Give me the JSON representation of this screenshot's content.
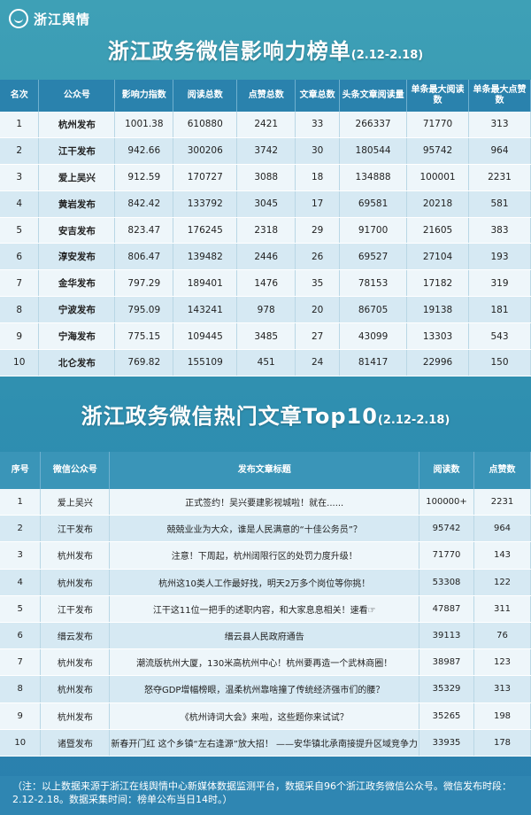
{
  "brand": {
    "name": "浙江舆情"
  },
  "ranking": {
    "title": "浙江政务微信影响力榜单",
    "period": "(2.12-2.18)",
    "headers": [
      "名次",
      "公众号",
      "影响力指数",
      "阅读总数",
      "点赞总数",
      "文章总数",
      "头条文章阅读量",
      "单条最大阅读数",
      "单条最大点赞数"
    ],
    "rows": [
      [
        "1",
        "杭州发布",
        "1001.38",
        "610880",
        "2421",
        "33",
        "266337",
        "71770",
        "313"
      ],
      [
        "2",
        "江干发布",
        "942.66",
        "300206",
        "3742",
        "30",
        "180544",
        "95742",
        "964"
      ],
      [
        "3",
        "爱上吴兴",
        "912.59",
        "170727",
        "3088",
        "18",
        "134888",
        "100001",
        "2231"
      ],
      [
        "4",
        "黄岩发布",
        "842.42",
        "133792",
        "3045",
        "17",
        "69581",
        "20218",
        "581"
      ],
      [
        "5",
        "安吉发布",
        "823.47",
        "176245",
        "2318",
        "29",
        "91700",
        "21605",
        "383"
      ],
      [
        "6",
        "淳安发布",
        "806.47",
        "139482",
        "2446",
        "26",
        "69527",
        "27104",
        "193"
      ],
      [
        "7",
        "金华发布",
        "797.29",
        "189401",
        "1476",
        "35",
        "78153",
        "17182",
        "319"
      ],
      [
        "8",
        "宁波发布",
        "795.09",
        "143241",
        "978",
        "20",
        "86705",
        "19138",
        "181"
      ],
      [
        "9",
        "宁海发布",
        "775.15",
        "109445",
        "3485",
        "27",
        "43099",
        "13303",
        "543"
      ],
      [
        "10",
        "北仑发布",
        "769.82",
        "155109",
        "451",
        "24",
        "81417",
        "22996",
        "150"
      ]
    ]
  },
  "top10": {
    "title": "浙江政务微信热门文章Top10",
    "period": "(2.12-2.18)",
    "headers": [
      "序号",
      "微信公众号",
      "发布文章标题",
      "阅读数",
      "点赞数"
    ],
    "rows": [
      [
        "1",
        "爱上吴兴",
        "正式签约！吴兴要建影视城啦！就在......",
        "100000+",
        "2231"
      ],
      [
        "2",
        "江干发布",
        "兢兢业业为大众，谁是人民满意的“十佳公务员”？",
        "95742",
        "964"
      ],
      [
        "3",
        "杭州发布",
        "注意！下周起，杭州阔限行区的处罚力度升级！",
        "71770",
        "143"
      ],
      [
        "4",
        "杭州发布",
        "杭州这10类人工作最好找，明天2万多个岗位等你挑！",
        "53308",
        "122"
      ],
      [
        "5",
        "江干发布",
        "江干这11位一把手的述职内容，和大家息息相关！速看☞",
        "47887",
        "311"
      ],
      [
        "6",
        "缙云发布",
        "缙云县人民政府通告",
        "39113",
        "76"
      ],
      [
        "7",
        "杭州发布",
        "潮流版杭州大厦，130米高杭州中心！杭州要再造一个武林商圈！",
        "38987",
        "123"
      ],
      [
        "8",
        "杭州发布",
        "怒夺GDP增幅榜眼，温柔杭州靠啥撞了传统经济强市们的腰？",
        "35329",
        "313"
      ],
      [
        "9",
        "杭州发布",
        "《杭州诗词大会》来啦，这些题你来试试？",
        "35265",
        "198"
      ],
      [
        "10",
        "诸暨发布",
        "新春开门红 这个乡镇“左右逢源”放大招！ ——安华镇北承南接提升区域竞争力",
        "33935",
        "178"
      ]
    ]
  },
  "note": "（注：以上数据来源于浙江在线舆情中心新媒体数据监测平台，数据采自96个浙江政务微信公众号。微信发布时段：2.12-2.18。数据采集时间：榜单公布当日14时。）"
}
